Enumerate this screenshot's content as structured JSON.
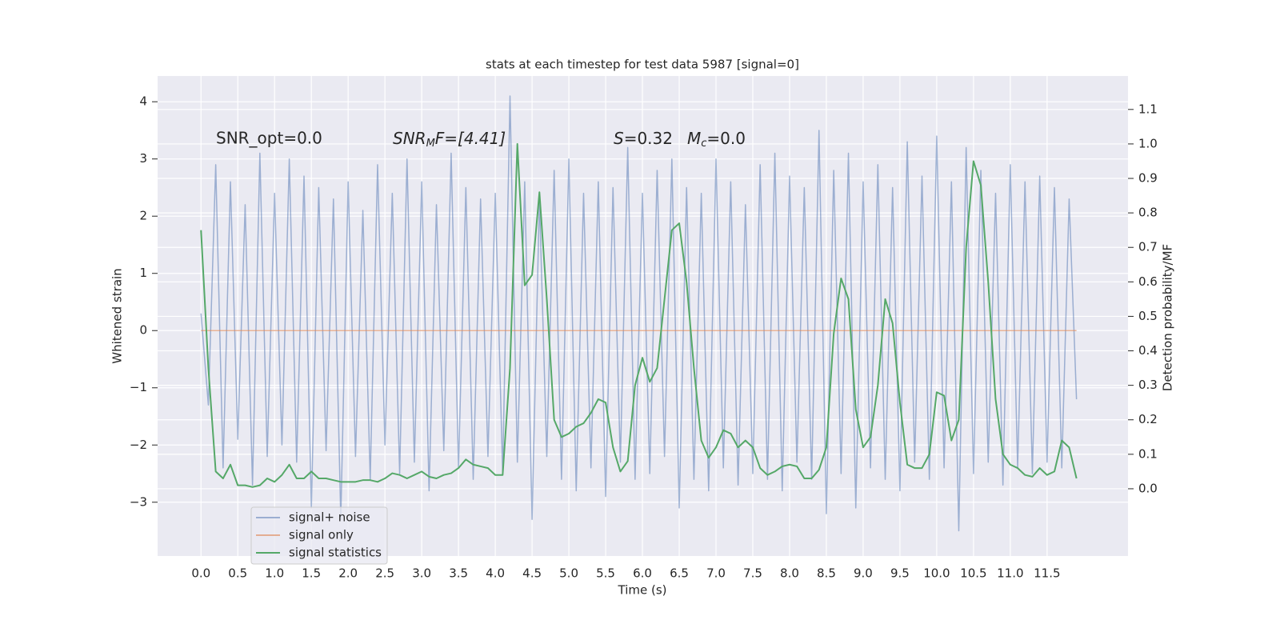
{
  "chart_data": {
    "type": "line",
    "title": "stats at each timestep for test data 5987 [signal=0]",
    "xlabel": "Time (s)",
    "ylabel": "Whitened strain",
    "y2label": "Detection probability/MF",
    "annotations": [
      [
        "SNR_opt=0.0"
      ],
      [
        "SNR",
        "M",
        "F=[4.41]"
      ],
      [
        "S",
        "=0.32"
      ],
      [
        "M",
        "c",
        "=0.0"
      ]
    ],
    "x": [
      0,
      0.1,
      0.2,
      0.3,
      0.4,
      0.5,
      0.6,
      0.7,
      0.8,
      0.9,
      1,
      1.1,
      1.2,
      1.3,
      1.4,
      1.5,
      1.6,
      1.7,
      1.8,
      1.9,
      2,
      2.1,
      2.2,
      2.3,
      2.4,
      2.5,
      2.6,
      2.7,
      2.8,
      2.9,
      3,
      3.1,
      3.2,
      3.3,
      3.4,
      3.5,
      3.6,
      3.7,
      3.8,
      3.9,
      4,
      4.1,
      4.2,
      4.3,
      4.4,
      4.5,
      4.6,
      4.7,
      4.8,
      4.9,
      5,
      5.1,
      5.2,
      5.3,
      5.4,
      5.5,
      5.6,
      5.7,
      5.8,
      5.9,
      6,
      6.1,
      6.2,
      6.3,
      6.4,
      6.5,
      6.6,
      6.7,
      6.8,
      6.9,
      7,
      7.1,
      7.2,
      7.3,
      7.4,
      7.5,
      7.6,
      7.7,
      7.8,
      7.9,
      8,
      8.1,
      8.2,
      8.3,
      8.4,
      8.5,
      8.6,
      8.7,
      8.8,
      8.9,
      9,
      9.1,
      9.2,
      9.3,
      9.4,
      9.5,
      9.6,
      9.7,
      9.8,
      9.9,
      10,
      10.1,
      10.2,
      10.3,
      10.4,
      10.5,
      10.6,
      10.7,
      10.8,
      10.9,
      11,
      11.1,
      11.2,
      11.3,
      11.4,
      11.5,
      11.6,
      11.7,
      11.8,
      11.9
    ],
    "series": [
      {
        "name": "signal+ noise",
        "color": "#4c72b0",
        "alpha": 0.5,
        "values": [
          0.3,
          -1.3,
          2.9,
          -2.4,
          2.6,
          -1.9,
          2.2,
          -2.7,
          3.1,
          -2.2,
          2.4,
          -2.0,
          3.0,
          -2.3,
          2.7,
          -3.1,
          2.5,
          -2.1,
          2.3,
          -3.3,
          2.6,
          -2.2,
          2.1,
          -2.6,
          2.9,
          -2.0,
          2.4,
          -2.5,
          3.0,
          -2.3,
          2.6,
          -2.8,
          2.2,
          -2.1,
          3.1,
          -2.4,
          2.5,
          -2.6,
          2.3,
          -2.2,
          2.4,
          -2.5,
          4.1,
          -2.3,
          2.6,
          -3.3,
          2.3,
          -2.2,
          2.8,
          -2.6,
          3.0,
          -2.8,
          2.4,
          -2.4,
          2.6,
          -2.9,
          2.5,
          -2.3,
          3.2,
          -2.6,
          2.4,
          -2.5,
          2.8,
          -2.2,
          3.0,
          -3.1,
          2.5,
          -2.6,
          2.4,
          -2.8,
          3.0,
          -2.4,
          2.6,
          -2.7,
          2.2,
          -2.5,
          2.9,
          -2.6,
          3.1,
          -2.8,
          2.7,
          -2.3,
          2.5,
          -2.6,
          3.5,
          -3.2,
          2.8,
          -2.5,
          3.1,
          -3.1,
          2.6,
          -2.4,
          2.9,
          -2.6,
          2.5,
          -2.8,
          3.3,
          -2.3,
          2.7,
          -2.6,
          3.4,
          -2.4,
          2.6,
          -3.5,
          3.2,
          -2.5,
          2.8,
          -2.3,
          2.4,
          -2.7,
          2.9,
          -2.4,
          2.6,
          -2.5,
          2.7,
          -2.3,
          2.5,
          -2.4,
          2.3,
          -1.2
        ]
      },
      {
        "name": "signal only",
        "color": "#dd8452",
        "alpha": 0.6,
        "values": [
          0,
          0,
          0,
          0,
          0,
          0,
          0,
          0,
          0,
          0,
          0,
          0,
          0,
          0,
          0,
          0,
          0,
          0,
          0,
          0,
          0,
          0,
          0,
          0,
          0,
          0,
          0,
          0,
          0,
          0,
          0,
          0,
          0,
          0,
          0,
          0,
          0,
          0,
          0,
          0,
          0,
          0,
          0,
          0,
          0,
          0,
          0,
          0,
          0,
          0,
          0,
          0,
          0,
          0,
          0,
          0,
          0,
          0,
          0,
          0,
          0,
          0,
          0,
          0,
          0,
          0,
          0,
          0,
          0,
          0,
          0,
          0,
          0,
          0,
          0,
          0,
          0,
          0,
          0,
          0,
          0,
          0,
          0,
          0,
          0,
          0,
          0,
          0,
          0,
          0,
          0,
          0,
          0,
          0,
          0,
          0,
          0,
          0,
          0,
          0,
          0,
          0,
          0,
          0,
          0,
          0,
          0,
          0,
          0,
          0,
          0,
          0,
          0,
          0,
          0,
          0,
          0,
          0,
          0,
          0
        ]
      },
      {
        "name": "signal statistics",
        "color": "#55a868",
        "alpha": 1,
        "axis": "y2",
        "values": [
          0.75,
          0.35,
          0.05,
          0.03,
          0.07,
          0.01,
          0.01,
          0.005,
          0.01,
          0.03,
          0.02,
          0.04,
          0.07,
          0.03,
          0.03,
          0.05,
          0.03,
          0.03,
          0.025,
          0.02,
          0.02,
          0.02,
          0.025,
          0.025,
          0.02,
          0.03,
          0.045,
          0.04,
          0.03,
          0.04,
          0.05,
          0.035,
          0.03,
          0.04,
          0.045,
          0.06,
          0.085,
          0.07,
          0.065,
          0.06,
          0.04,
          0.04,
          0.35,
          1.0,
          0.59,
          0.62,
          0.86,
          0.55,
          0.2,
          0.15,
          0.16,
          0.18,
          0.19,
          0.22,
          0.26,
          0.25,
          0.12,
          0.05,
          0.08,
          0.3,
          0.38,
          0.31,
          0.35,
          0.55,
          0.75,
          0.77,
          0.6,
          0.35,
          0.14,
          0.09,
          0.12,
          0.17,
          0.16,
          0.12,
          0.14,
          0.12,
          0.06,
          0.04,
          0.05,
          0.065,
          0.07,
          0.065,
          0.03,
          0.03,
          0.055,
          0.12,
          0.45,
          0.61,
          0.55,
          0.23,
          0.12,
          0.15,
          0.3,
          0.55,
          0.48,
          0.25,
          0.07,
          0.06,
          0.06,
          0.1,
          0.28,
          0.27,
          0.14,
          0.2,
          0.7,
          0.95,
          0.88,
          0.6,
          0.26,
          0.1,
          0.07,
          0.06,
          0.04,
          0.035,
          0.06,
          0.04,
          0.05,
          0.14,
          0.12,
          0.03
        ]
      }
    ],
    "xlim": [
      -0.59,
      12.6
    ],
    "xticks": [
      {
        "value": 0,
        "label": "0.0"
      },
      0.5,
      {
        "value": 1,
        "label": "1.0"
      },
      1.5,
      {
        "value": 2,
        "label": "2.0"
      },
      2.5,
      {
        "value": 3,
        "label": "3.0"
      },
      3.5,
      {
        "value": 4,
        "label": "4.0"
      },
      4.5,
      {
        "value": 5,
        "label": "5.0"
      },
      5.5,
      {
        "value": 6,
        "label": "6.0"
      },
      6.5,
      {
        "value": 7,
        "label": "7.0"
      },
      7.5,
      {
        "value": 8,
        "label": "8.0"
      },
      8.5,
      {
        "value": 9,
        "label": "9.0"
      },
      9.5,
      {
        "value": 10,
        "label": "10.0"
      },
      10.5,
      {
        "value": 11,
        "label": "11.0"
      },
      11.5
    ],
    "ylim": [
      -3.94,
      4.45
    ],
    "yticks": [
      {
        "value": -3,
        "label": "−3"
      },
      {
        "value": -2,
        "label": "−2"
      },
      {
        "value": -1,
        "label": "−1"
      },
      0,
      1,
      2,
      3,
      4
    ],
    "y2lim": [
      -0.195,
      1.197
    ],
    "y2ticks": [
      {
        "value": 0,
        "label": "0.0"
      },
      0.1,
      0.2,
      0.3,
      0.4,
      0.5,
      0.6,
      0.7,
      0.8,
      0.9,
      {
        "value": 1,
        "label": "1.0"
      },
      1.1
    ],
    "grid": true,
    "legend_loc": "lower left"
  }
}
